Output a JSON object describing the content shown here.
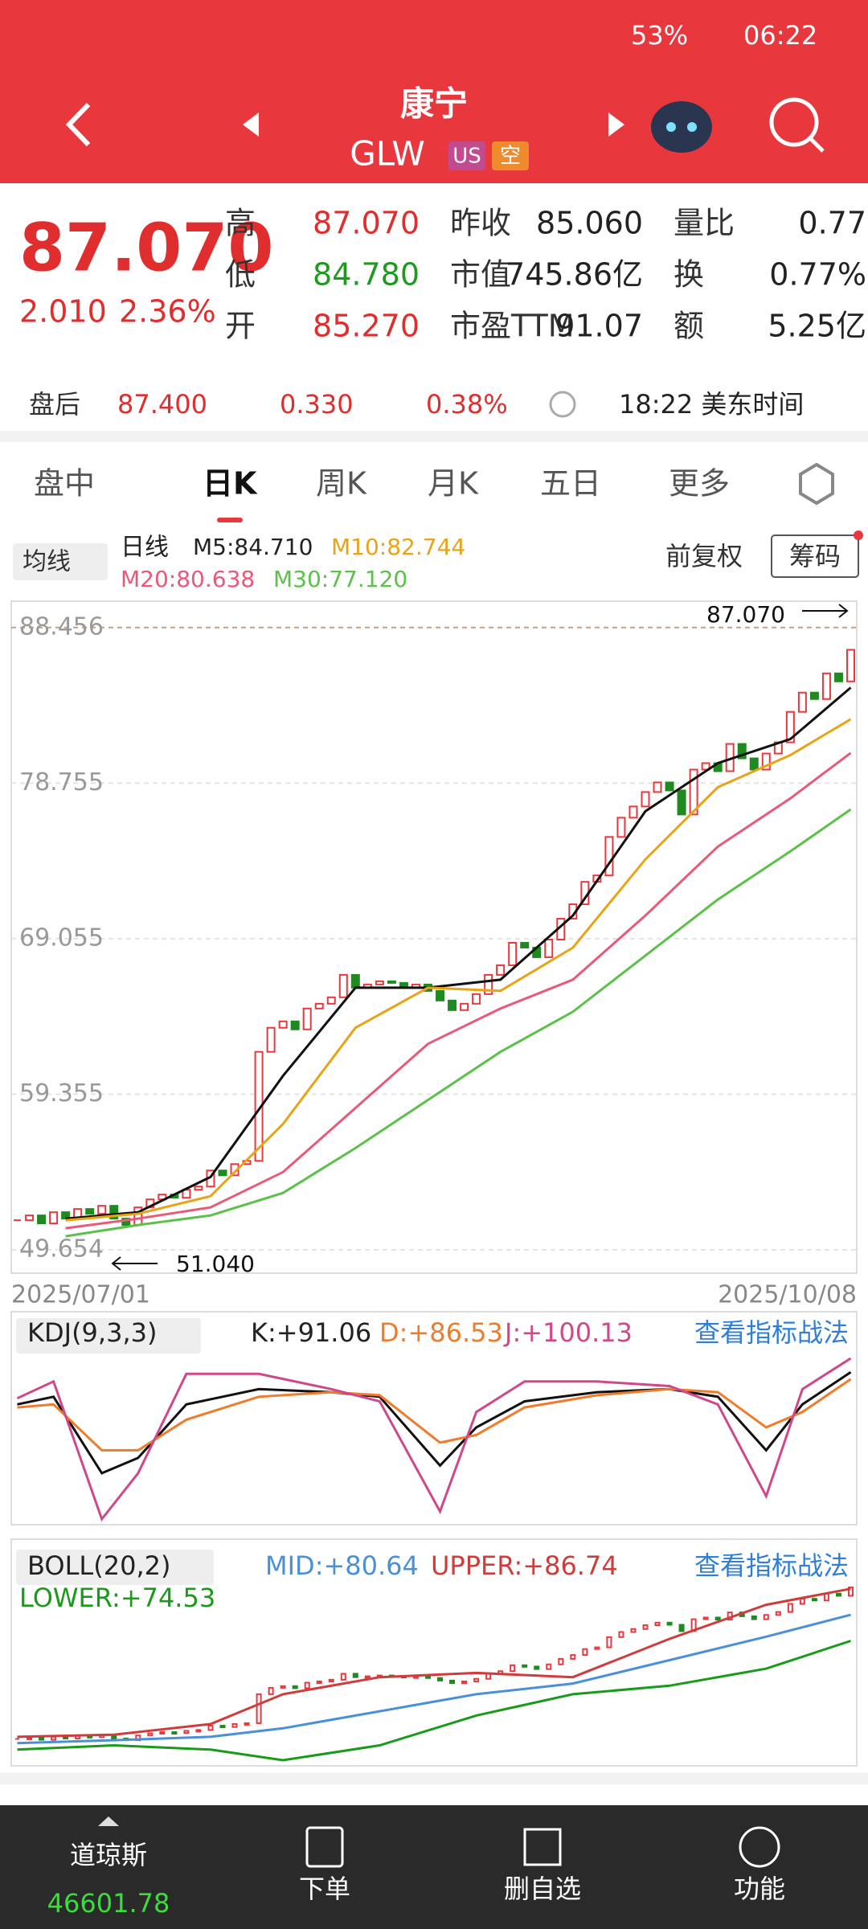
{
  "status_bar": {
    "battery": "53%",
    "time": "06:22"
  },
  "header": {
    "title": "康宁",
    "ticker": "GLW",
    "badges": [
      "US",
      "空"
    ]
  },
  "quote": {
    "price": "87.070",
    "change": "2.010",
    "change_pct": "2.36%",
    "fields": [
      {
        "label": "高",
        "value": "87.070"
      },
      {
        "label": "低",
        "value": "84.780"
      },
      {
        "label": "开",
        "value": "85.270"
      },
      {
        "label": "昨收",
        "value": "85.060"
      },
      {
        "label": "市值",
        "value": "745.86亿"
      },
      {
        "label": "市盈TTM",
        "value": "91.07"
      },
      {
        "label": "量比",
        "value": "0.77"
      },
      {
        "label": "换",
        "value": "0.77%"
      },
      {
        "label": "额",
        "value": "5.25亿"
      }
    ]
  },
  "after_hours": {
    "label": "盘后",
    "price": "87.400",
    "change": "0.330",
    "change_pct": "0.38%",
    "time": "18:22 美东时间"
  },
  "tabs": [
    "盘中",
    "日K",
    "周K",
    "月K",
    "五日",
    "更多"
  ],
  "toolbar": {
    "ma_button": "均线",
    "period": "日线",
    "ma_labels": [
      "M5:84.710",
      "M10:82.744",
      "M20:80.638",
      "M30:77.120"
    ],
    "adjust": "前复权",
    "chips": "筹码"
  },
  "chart_data": {
    "type": "candlestick",
    "ylim": [
      48.2,
      90.0
    ],
    "yticks": [
      88.456,
      78.755,
      69.055,
      59.355,
      49.654
    ],
    "grid": true,
    "x_start": "2025/07/01",
    "x_end": "2025/10/08",
    "high_label": "87.070",
    "low_label": "51.040",
    "up_color": "#e8383d",
    "down_color": "#1f8a1f",
    "closes": [
      51.5,
      51.8,
      51.3,
      52.0,
      51.6,
      52.2,
      51.9,
      52.4,
      51.6,
      51.2,
      52.3,
      52.8,
      53.1,
      52.9,
      53.4,
      53.6,
      54.6,
      54.3,
      55.0,
      55.2,
      62.0,
      63.5,
      63.9,
      63.4,
      64.7,
      65.0,
      65.4,
      66.8,
      66.0,
      66.2,
      66.4,
      66.3,
      66.0,
      66.2,
      65.8,
      65.2,
      64.6,
      65.0,
      65.6,
      66.8,
      67.4,
      68.8,
      68.5,
      67.9,
      69.0,
      70.3,
      71.2,
      72.6,
      73.0,
      75.4,
      76.6,
      77.3,
      78.2,
      78.8,
      78.3,
      76.8,
      79.6,
      80.0,
      79.5,
      81.2,
      80.3,
      79.6,
      80.6,
      81.3,
      83.2,
      84.4,
      84.0,
      85.6,
      85.1,
      87.07
    ],
    "ma_x": [
      4,
      10,
      16,
      22,
      28,
      34,
      40,
      46,
      52,
      58,
      64,
      69
    ],
    "series": [
      {
        "color": "#111111",
        "values": [
          51.6,
          52.0,
          54.2,
          60.5,
          66.0,
          66.0,
          66.5,
          70.5,
          77.0,
          80.0,
          81.5,
          84.71
        ]
      },
      {
        "color": "#e8a317",
        "values": [
          51.5,
          51.9,
          53.0,
          57.5,
          63.5,
          66.0,
          65.8,
          68.5,
          74.0,
          78.5,
          80.5,
          82.744
        ]
      },
      {
        "color": "#e85a7a",
        "values": [
          51.0,
          51.6,
          52.3,
          54.5,
          58.5,
          62.5,
          64.7,
          66.5,
          70.5,
          74.8,
          77.8,
          80.638
        ]
      },
      {
        "color": "#5cc04a",
        "values": [
          50.5,
          51.2,
          51.8,
          53.2,
          56.0,
          59.0,
          62.0,
          64.5,
          68.0,
          71.5,
          74.5,
          77.12
        ]
      }
    ]
  },
  "kdj": {
    "title": "KDJ(9,3,3)",
    "labels": [
      "K:+91.06",
      "D:+86.53",
      "J:+100.13"
    ],
    "link": "查看指标战法",
    "x": [
      0,
      3,
      7,
      10,
      14,
      20,
      26,
      30,
      35,
      38,
      42,
      48,
      54,
      58,
      62,
      65,
      69
    ],
    "series": [
      {
        "color": "#111111",
        "values": [
          70,
          75,
          25,
          35,
          70,
          80,
          78,
          75,
          30,
          55,
          72,
          78,
          80,
          75,
          40,
          70,
          91.06
        ]
      },
      {
        "color": "#f07c2a",
        "values": [
          68,
          70,
          40,
          40,
          60,
          75,
          78,
          76,
          45,
          50,
          68,
          76,
          80,
          78,
          55,
          65,
          86.53
        ]
      },
      {
        "color": "#d0488a",
        "values": [
          74,
          85,
          -5,
          25,
          90,
          90,
          80,
          72,
          0,
          65,
          85,
          85,
          82,
          70,
          10,
          80,
          100.13
        ]
      }
    ]
  },
  "boll": {
    "title": "BOLL(20,2)",
    "labels": [
      "MID:+80.64",
      "UPPER:+86.74",
      "LOWER:+74.53"
    ],
    "link": "查看指标战法",
    "x": [
      0,
      8,
      16,
      22,
      30,
      38,
      46,
      54,
      62,
      69
    ],
    "series": [
      {
        "color": "#4a90d9",
        "values": [
          50.5,
          51.2,
          52.0,
          54.0,
          58.0,
          62.0,
          64.5,
          70.0,
          75.5,
          80.64
        ]
      },
      {
        "color": "#d03b3b",
        "values": [
          52.0,
          52.5,
          55.0,
          62.0,
          66.0,
          67.0,
          66.0,
          75.0,
          83.0,
          86.74
        ]
      },
      {
        "color": "#1a9a1a",
        "values": [
          49.0,
          50.0,
          49.0,
          46.5,
          50.0,
          57.0,
          62.0,
          64.0,
          68.0,
          74.53
        ]
      }
    ]
  },
  "bottom_nav": {
    "index_name": "道琼斯",
    "index_value": "46601.78",
    "items": [
      "下单",
      "删自选",
      "功能"
    ]
  }
}
